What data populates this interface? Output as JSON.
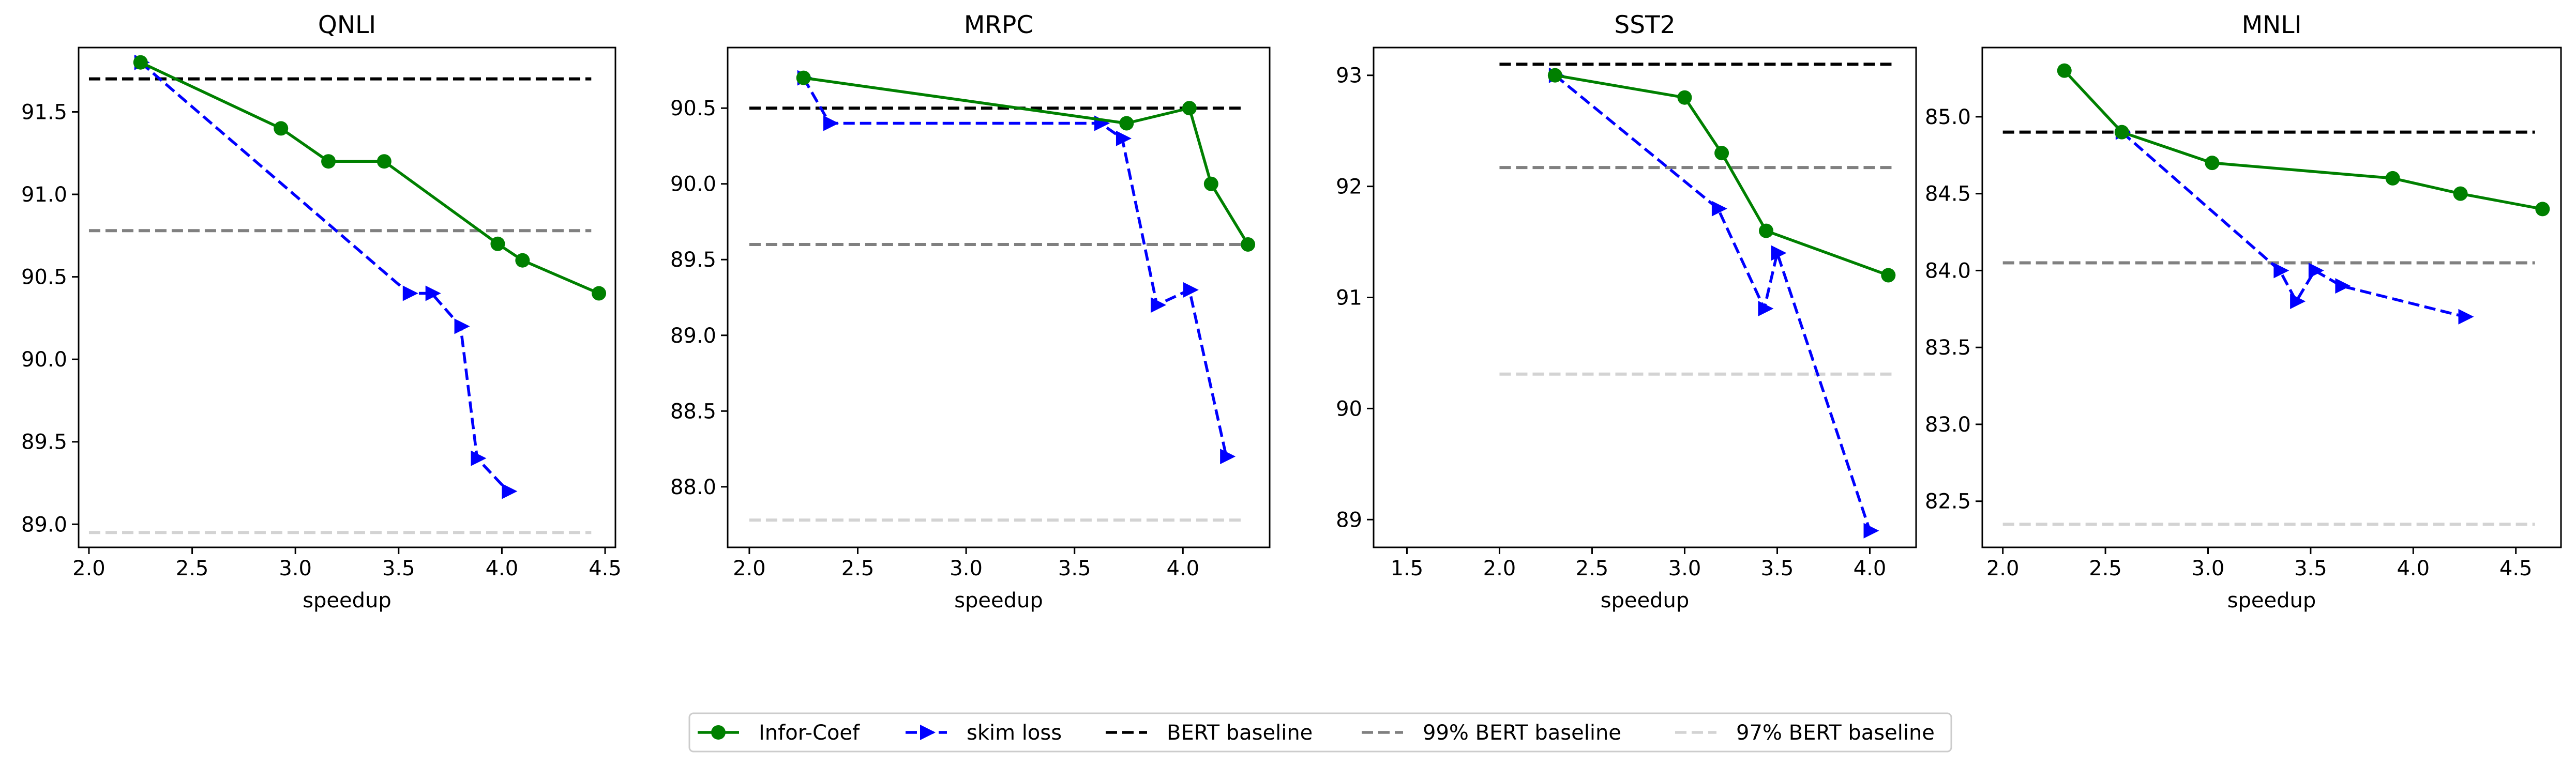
{
  "chart_data": [
    {
      "type": "line",
      "title": "QNLI",
      "xlabel": "speedup",
      "ylabel": "",
      "xlim": [
        1.95,
        4.55
      ],
      "ylim": [
        88.86,
        91.89
      ],
      "xticks": [
        "2.0",
        "2.5",
        "3.0",
        "3.5",
        "4.0",
        "4.5"
      ],
      "yticks": [
        "89.0",
        "89.5",
        "90.0",
        "90.5",
        "91.0",
        "91.5"
      ],
      "series": [
        {
          "name": "Infor-Coef",
          "x": [
            2.25,
            2.93,
            3.16,
            3.43,
            3.98,
            4.1,
            4.47
          ],
          "y": [
            91.8,
            91.4,
            91.2,
            91.2,
            90.7,
            90.6,
            90.4
          ]
        },
        {
          "name": "skim loss",
          "x": [
            2.25,
            3.55,
            3.66,
            3.8,
            3.88,
            4.03
          ],
          "y": [
            91.8,
            90.4,
            90.4,
            90.2,
            89.4,
            89.2
          ]
        }
      ],
      "baselines": [
        {
          "name": "BERT baseline",
          "value": 91.7
        },
        {
          "name": "99% BERT baseline",
          "value": 90.78
        },
        {
          "name": "97% BERT baseline",
          "value": 88.95
        }
      ]
    },
    {
      "type": "line",
      "title": "MRPC",
      "xlabel": "speedup",
      "ylabel": "",
      "xlim": [
        1.9,
        4.4
      ],
      "ylim": [
        87.6,
        90.9
      ],
      "xticks": [
        "2.0",
        "2.5",
        "3.0",
        "3.5",
        "4.0"
      ],
      "yticks": [
        "88.0",
        "88.5",
        "89.0",
        "89.5",
        "90.0",
        "90.5"
      ],
      "series": [
        {
          "name": "Infor-Coef",
          "x": [
            2.25,
            3.74,
            4.03,
            4.13,
            4.3
          ],
          "y": [
            90.7,
            90.4,
            90.5,
            90.0,
            89.6
          ]
        },
        {
          "name": "skim loss",
          "x": [
            2.25,
            2.37,
            3.62,
            3.72,
            3.88,
            4.03,
            4.2
          ],
          "y": [
            90.7,
            90.4,
            90.4,
            90.3,
            89.2,
            89.3,
            88.2
          ]
        }
      ],
      "baselines": [
        {
          "name": "BERT baseline",
          "value": 90.5
        },
        {
          "name": "99% BERT baseline",
          "value": 89.6
        },
        {
          "name": "97% BERT baseline",
          "value": 87.78
        }
      ]
    },
    {
      "type": "line",
      "title": "SST2",
      "xlabel": "speedup",
      "ylabel": "",
      "xlim": [
        1.32,
        4.25
      ],
      "ylim": [
        88.75,
        93.25
      ],
      "xticks": [
        "1.5",
        "2.0",
        "2.5",
        "3.0",
        "3.5",
        "4.0"
      ],
      "yticks": [
        "89",
        "90",
        "91",
        "92",
        "93"
      ],
      "series": [
        {
          "name": "Infor-Coef",
          "x": [
            2.3,
            3.0,
            3.2,
            3.44,
            4.1
          ],
          "y": [
            93.0,
            92.8,
            92.3,
            91.6,
            91.2
          ]
        },
        {
          "name": "skim loss",
          "x": [
            2.3,
            3.18,
            3.43,
            3.5,
            4.0
          ],
          "y": [
            93.0,
            91.8,
            90.9,
            91.4,
            88.9
          ]
        }
      ],
      "baselines": [
        {
          "name": "BERT baseline",
          "value": 93.1
        },
        {
          "name": "99% BERT baseline",
          "value": 92.17
        },
        {
          "name": "97% BERT baseline",
          "value": 90.31
        }
      ]
    },
    {
      "type": "line",
      "title": "MNLI",
      "xlabel": "speedup",
      "ylabel": "",
      "xlim": [
        1.9,
        4.72
      ],
      "ylim": [
        82.2,
        85.45
      ],
      "xticks": [
        "2.0",
        "2.5",
        "3.0",
        "3.5",
        "4.0",
        "4.5"
      ],
      "yticks": [
        "82.5",
        "83.0",
        "83.5",
        "84.0",
        "84.5",
        "85.0"
      ],
      "series": [
        {
          "name": "Infor-Coef",
          "x": [
            2.3,
            2.58,
            3.02,
            3.9,
            4.23,
            4.63
          ],
          "y": [
            85.3,
            84.9,
            84.7,
            84.6,
            84.5,
            84.4
          ]
        },
        {
          "name": "skim loss",
          "x": [
            2.58,
            3.35,
            3.43,
            3.52,
            3.65,
            4.25
          ],
          "y": [
            84.9,
            84.0,
            83.8,
            84.0,
            83.9,
            83.7
          ]
        }
      ],
      "baselines": [
        {
          "name": "BERT baseline",
          "value": 84.9
        },
        {
          "name": "99% BERT baseline",
          "value": 84.05
        },
        {
          "name": "97% BERT baseline",
          "value": 82.35
        }
      ]
    }
  ],
  "legend": {
    "placement": "bottom-center",
    "entries": [
      {
        "label": "Infor-Coef",
        "color": "#008000",
        "style": "solid",
        "marker": "circle"
      },
      {
        "label": "skim loss",
        "color": "#0000ff",
        "style": "dashed",
        "marker": "triangle-right"
      },
      {
        "label": "BERT baseline",
        "color": "#000000",
        "style": "dashed",
        "marker": "none"
      },
      {
        "label": "99% BERT baseline",
        "color": "#808080",
        "style": "dashed",
        "marker": "none"
      },
      {
        "label": "97% BERT baseline",
        "color": "#d3d3d3",
        "style": "dashed",
        "marker": "none"
      }
    ]
  },
  "colors": {
    "infor_coef": "#008000",
    "skim_loss": "#0000ff",
    "bert": "#000000",
    "bert99": "#808080",
    "bert97": "#d3d3d3"
  }
}
